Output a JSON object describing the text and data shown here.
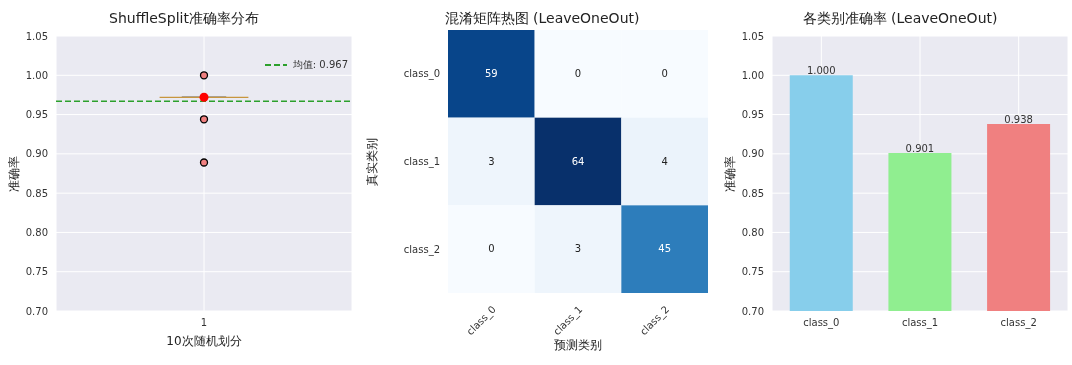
{
  "chart_data": [
    {
      "type": "box",
      "title": "ShuffleSplit准确率分布",
      "xlabel": "10次随机划分",
      "ylabel": "准确率",
      "categories": [
        "1"
      ],
      "boxes": [
        {
          "low": 0.972,
          "q1": 0.972,
          "median": 0.972,
          "q3": 0.972,
          "high": 0.972,
          "outliers": [
            0.889,
            0.944,
            1.0
          ]
        }
      ],
      "series": [
        {
          "type": "scatter",
          "x": [
            "1"
          ],
          "values": [
            0.972
          ],
          "color": "#ff0000"
        }
      ],
      "ylim": [
        0.7,
        1.05
      ],
      "yticks": [
        {
          "value": 0.7,
          "label": "0.70"
        },
        {
          "value": 0.75,
          "label": "0.75"
        },
        {
          "value": 0.8,
          "label": "0.80"
        },
        {
          "value": 0.85,
          "label": "0.85"
        },
        {
          "value": 0.9,
          "label": "0.90"
        },
        {
          "value": 0.95,
          "label": "0.95"
        },
        {
          "value": 1.0,
          "label": "1.00"
        },
        {
          "value": 1.05,
          "label": "1.05"
        }
      ],
      "ref_lines": [
        {
          "axis": "y",
          "value": 0.967,
          "label": "均值: 0.967",
          "color": "#2ca02c",
          "line_style": "dashed"
        }
      ],
      "grid": true,
      "legend": "top right"
    },
    {
      "type": "heatmap",
      "title": "混淆矩阵热图 (LeaveOneOut)",
      "xlabel": "预测类别",
      "ylabel": "真实类别",
      "categories": [
        "class_0",
        "class_1",
        "class_2"
      ],
      "y_categories": [
        "class_0",
        "class_1",
        "class_2"
      ],
      "cells": [
        [
          59,
          0,
          0
        ],
        [
          3,
          64,
          4
        ],
        [
          0,
          3,
          45
        ]
      ],
      "data_labels": true,
      "grid": true
    },
    {
      "type": "bar",
      "title": "各类别准确率 (LeaveOneOut)",
      "ylabel": "准确率",
      "categories": [
        "class_0",
        "class_1",
        "class_2"
      ],
      "values": [
        1.0,
        0.901,
        0.938
      ],
      "colors": [
        "#87ceeb",
        "#90ee90",
        "#f08080"
      ],
      "value_labels": [
        "1.000",
        "0.901",
        "0.938"
      ],
      "ylim": [
        0.7,
        1.05
      ],
      "yticks": [
        {
          "value": 0.7,
          "label": "0.70"
        },
        {
          "value": 0.75,
          "label": "0.75"
        },
        {
          "value": 0.8,
          "label": "0.80"
        },
        {
          "value": 0.85,
          "label": "0.85"
        },
        {
          "value": 0.9,
          "label": "0.90"
        },
        {
          "value": 0.95,
          "label": "0.95"
        },
        {
          "value": 1.0,
          "label": "1.00"
        },
        {
          "value": 1.05,
          "label": "1.05"
        }
      ],
      "grid": true
    }
  ]
}
